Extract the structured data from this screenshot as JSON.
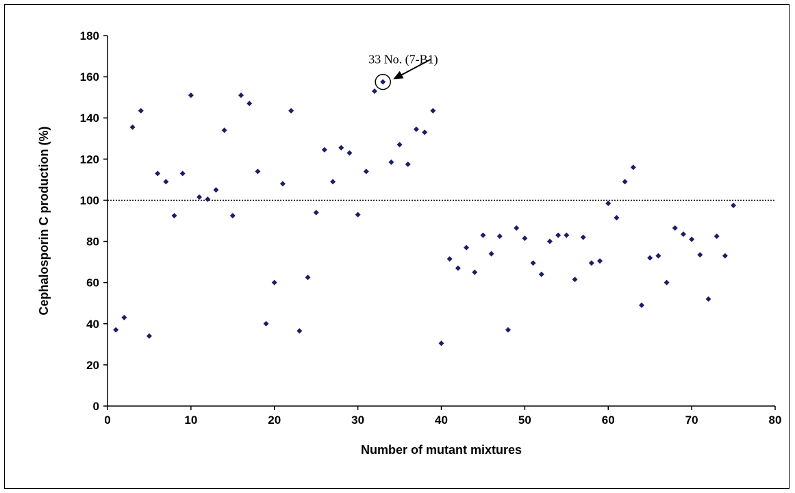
{
  "chart_data": {
    "type": "scatter",
    "xlabel": "Number of mutant mixtures",
    "ylabel": "Cephalosporin C production (%)",
    "xlim": [
      0,
      80
    ],
    "ylim": [
      0,
      180
    ],
    "x_ticks": [
      0,
      10,
      20,
      30,
      40,
      50,
      60,
      70,
      80
    ],
    "y_ticks": [
      0,
      20,
      40,
      60,
      80,
      100,
      120,
      140,
      160,
      180
    ],
    "grid": false,
    "legend": "none",
    "marker_color": "#1a1a7a",
    "reference_line": {
      "y": 100,
      "style": "dotted"
    },
    "annotation": {
      "text": "33 No. (7-B1)",
      "x": 33,
      "y": 157.5
    },
    "points": [
      {
        "x": 1,
        "y": 37
      },
      {
        "x": 2,
        "y": 43
      },
      {
        "x": 3,
        "y": 135.5
      },
      {
        "x": 4,
        "y": 143.5
      },
      {
        "x": 5,
        "y": 34
      },
      {
        "x": 6,
        "y": 113
      },
      {
        "x": 7,
        "y": 109
      },
      {
        "x": 8,
        "y": 92.5
      },
      {
        "x": 9,
        "y": 113
      },
      {
        "x": 10,
        "y": 151
      },
      {
        "x": 11,
        "y": 101.5
      },
      {
        "x": 12,
        "y": 100.5
      },
      {
        "x": 13,
        "y": 105
      },
      {
        "x": 14,
        "y": 134
      },
      {
        "x": 15,
        "y": 92.5
      },
      {
        "x": 16,
        "y": 151
      },
      {
        "x": 17,
        "y": 147
      },
      {
        "x": 18,
        "y": 114
      },
      {
        "x": 19,
        "y": 40
      },
      {
        "x": 20,
        "y": 60
      },
      {
        "x": 21,
        "y": 108
      },
      {
        "x": 22,
        "y": 143.5
      },
      {
        "x": 23,
        "y": 36.5
      },
      {
        "x": 24,
        "y": 62.5
      },
      {
        "x": 25,
        "y": 94
      },
      {
        "x": 26,
        "y": 124.5
      },
      {
        "x": 27,
        "y": 109
      },
      {
        "x": 28,
        "y": 125.5
      },
      {
        "x": 29,
        "y": 123
      },
      {
        "x": 30,
        "y": 93
      },
      {
        "x": 31,
        "y": 114
      },
      {
        "x": 32,
        "y": 153
      },
      {
        "x": 33,
        "y": 157.5
      },
      {
        "x": 34,
        "y": 118.5
      },
      {
        "x": 35,
        "y": 127
      },
      {
        "x": 36,
        "y": 117.5
      },
      {
        "x": 37,
        "y": 134.5
      },
      {
        "x": 38,
        "y": 133
      },
      {
        "x": 39,
        "y": 143.5
      },
      {
        "x": 40,
        "y": 30.5
      },
      {
        "x": 41,
        "y": 71.5
      },
      {
        "x": 42,
        "y": 67
      },
      {
        "x": 43,
        "y": 77
      },
      {
        "x": 44,
        "y": 65
      },
      {
        "x": 45,
        "y": 83
      },
      {
        "x": 46,
        "y": 74
      },
      {
        "x": 47,
        "y": 82.5
      },
      {
        "x": 48,
        "y": 37
      },
      {
        "x": 49,
        "y": 86.5
      },
      {
        "x": 50,
        "y": 81.5
      },
      {
        "x": 51,
        "y": 69.5
      },
      {
        "x": 52,
        "y": 64
      },
      {
        "x": 53,
        "y": 80
      },
      {
        "x": 54,
        "y": 83
      },
      {
        "x": 55,
        "y": 83
      },
      {
        "x": 56,
        "y": 61.5
      },
      {
        "x": 57,
        "y": 82
      },
      {
        "x": 58,
        "y": 69.5
      },
      {
        "x": 59,
        "y": 70.5
      },
      {
        "x": 60,
        "y": 98.5
      },
      {
        "x": 61,
        "y": 91.5
      },
      {
        "x": 62,
        "y": 109
      },
      {
        "x": 63,
        "y": 116
      },
      {
        "x": 64,
        "y": 49
      },
      {
        "x": 65,
        "y": 72
      },
      {
        "x": 66,
        "y": 73
      },
      {
        "x": 67,
        "y": 60
      },
      {
        "x": 68,
        "y": 86.5
      },
      {
        "x": 69,
        "y": 83.5
      },
      {
        "x": 70,
        "y": 81
      },
      {
        "x": 71,
        "y": 73.5
      },
      {
        "x": 72,
        "y": 52
      },
      {
        "x": 73,
        "y": 82.5
      },
      {
        "x": 74,
        "y": 73
      },
      {
        "x": 75,
        "y": 97.5
      }
    ]
  }
}
